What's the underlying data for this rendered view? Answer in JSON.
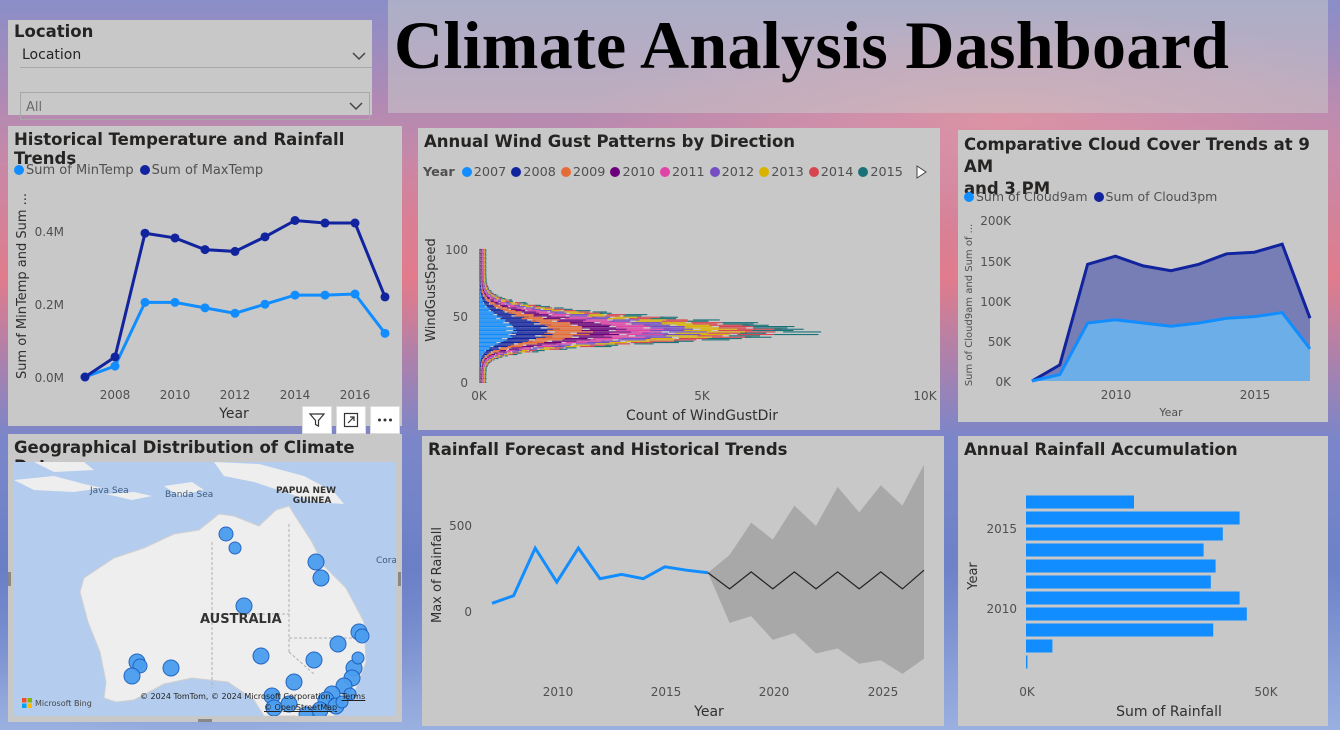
{
  "dashboard_title": "Climate Analysis Dashboard",
  "slicer": {
    "title": "Location",
    "field": "Location",
    "selected_value": "All"
  },
  "historical": {
    "title": "Historical Temperature and Rainfall Trends",
    "legend": [
      "Sum of MinTemp",
      "Sum of MaxTemp"
    ],
    "colors": [
      "#118dff",
      "#12239e"
    ],
    "ylabel": "Sum of MinTemp and Sum ...",
    "xlabel": "Year",
    "x_ticks": [
      "2008",
      "2010",
      "2012",
      "2014",
      "2016"
    ],
    "y_ticks": [
      "0.0M",
      "0.2M",
      "0.4M"
    ]
  },
  "wind": {
    "title": "Annual Wind Gust Patterns by Direction",
    "legend_label": "Year",
    "legend": [
      "2007",
      "2008",
      "2009",
      "2010",
      "2011",
      "2012",
      "2013",
      "2014",
      "2015"
    ],
    "colors": [
      "#118dff",
      "#12239e",
      "#e66c37",
      "#6b007b",
      "#e044a7",
      "#744ec2",
      "#d9b300",
      "#d64550",
      "#197278"
    ],
    "ylabel": "WindGustSpeed",
    "xlabel": "Count of WindGustDir",
    "x_ticks": [
      "0K",
      "5K",
      "10K"
    ],
    "y_ticks": [
      "0",
      "50",
      "100"
    ]
  },
  "cloud": {
    "title_line1": "Comparative Cloud Cover Trends at 9 AM",
    "title_line2": "and 3 PM",
    "legend": [
      "Sum of Cloud9am",
      "Sum of Cloud3pm"
    ],
    "colors": [
      "#118dff",
      "#12239e"
    ],
    "ylabel": "Sum of Cloud9am and Sum of ...",
    "xlabel": "Year",
    "x_ticks": [
      "2010",
      "2015"
    ],
    "y_ticks": [
      "0K",
      "50K",
      "100K",
      "150K",
      "200K"
    ]
  },
  "map": {
    "title": "Geographical Distribution of Climate Data",
    "labels": {
      "java_sea": "Java Sea",
      "banda_sea": "Banda Sea",
      "png_line1": "PAPUA NEW",
      "png_line2": "GUINEA",
      "coral": "Cora",
      "australia": "AUSTRALIA"
    },
    "attribution": "© 2024 TomTom, © 2024 Microsoft Corporation,",
    "terms": "Terms",
    "osm": "© OpenStreetMap",
    "bing": "Microsoft Bing"
  },
  "forecast": {
    "title": "Rainfall Forecast and Historical Trends",
    "ylabel": "Max of Rainfall",
    "xlabel": "Year",
    "x_ticks": [
      "2010",
      "2015",
      "2020",
      "2025"
    ],
    "y_ticks": [
      "0",
      "500"
    ]
  },
  "annual": {
    "title": "Annual Rainfall Accumulation",
    "ylabel": "Year",
    "xlabel": "Sum of Rainfall",
    "x_ticks": [
      "0K",
      "50K"
    ],
    "y_ticks": [
      "2010",
      "2015"
    ]
  },
  "chart_data": [
    {
      "type": "line",
      "title": "Historical Temperature and Rainfall Trends",
      "xlabel": "Year",
      "ylabel": "Sum of MinTemp and Sum ...",
      "x": [
        2007,
        2008,
        2009,
        2010,
        2011,
        2012,
        2013,
        2014,
        2015,
        2016,
        2017
      ],
      "series": [
        {
          "name": "Sum of MinTemp",
          "values": [
            0.0,
            0.03,
            0.205,
            0.205,
            0.19,
            0.175,
            0.2,
            0.225,
            0.225,
            0.228,
            0.12
          ]
        },
        {
          "name": "Sum of MaxTemp",
          "values": [
            0.0,
            0.055,
            0.395,
            0.382,
            0.35,
            0.345,
            0.385,
            0.43,
            0.423,
            0.423,
            0.22
          ]
        }
      ],
      "ylim": [
        0,
        0.45
      ],
      "unit": "M"
    },
    {
      "type": "area",
      "title": "Comparative Cloud Cover Trends at 9 AM and 3 PM",
      "xlabel": "Year",
      "x": [
        2007,
        2008,
        2009,
        2010,
        2011,
        2012,
        2013,
        2014,
        2015,
        2016,
        2017
      ],
      "series": [
        {
          "name": "Sum of Cloud9am",
          "values": [
            0,
            8,
            72,
            76,
            72,
            68,
            72,
            78,
            80,
            85,
            40
          ]
        },
        {
          "name": "Sum of Cloud3pm",
          "values": [
            0,
            20,
            145,
            155,
            143,
            137,
            145,
            158,
            160,
            170,
            78
          ]
        }
      ],
      "ylim": [
        0,
        200
      ],
      "unit": "K"
    },
    {
      "type": "line",
      "title": "Rainfall Forecast and Historical Trends",
      "xlabel": "Year",
      "ylabel": "Max of Rainfall",
      "x": [
        2007,
        2008,
        2009,
        2010,
        2011,
        2012,
        2013,
        2014,
        2015,
        2016,
        2017
      ],
      "series": [
        {
          "name": "Max of Rainfall",
          "values": [
            45,
            90,
            370,
            170,
            370,
            190,
            215,
            190,
            260,
            240,
            225
          ]
        }
      ],
      "forecast": {
        "x": [
          2017,
          2018,
          2019,
          2020,
          2021,
          2022,
          2023,
          2024,
          2025,
          2026,
          2027
        ],
        "values": [
          225,
          130,
          230,
          130,
          230,
          130,
          230,
          130,
          230,
          130,
          240
        ],
        "upper": [
          225,
          330,
          520,
          420,
          620,
          500,
          730,
          580,
          740,
          620,
          860
        ],
        "lower": [
          225,
          -70,
          -30,
          -170,
          -130,
          -250,
          -220,
          -310,
          -290,
          -370,
          -280
        ]
      },
      "ylim": [
        -400,
        900
      ]
    },
    {
      "type": "bar",
      "orientation": "horizontal",
      "title": "Annual Rainfall Accumulation",
      "xlabel": "Sum of Rainfall",
      "ylabel": "Year",
      "categories": [
        "2007",
        "2008",
        "2009",
        "2010",
        "2011",
        "2012",
        "2013",
        "2014",
        "2015",
        "2016",
        "2017"
      ],
      "values": [
        0.3,
        5.5,
        39,
        46,
        44.5,
        38.5,
        39.5,
        37,
        41,
        44.5,
        22.5
      ],
      "xlim": [
        0,
        60
      ],
      "unit": "K"
    }
  ]
}
